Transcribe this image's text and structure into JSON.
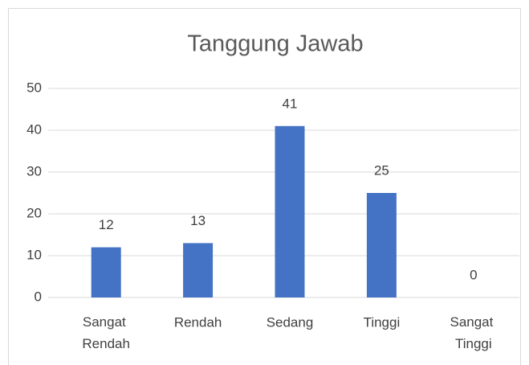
{
  "chart_data": {
    "type": "bar",
    "title": "Tanggung Jawab",
    "categories": [
      "Sangat Rendah",
      "Rendah",
      "Sedang",
      "Tinggi",
      "Sangat Tinggi"
    ],
    "values": [
      12,
      13,
      41,
      25,
      0
    ],
    "color": "#4472c4",
    "ylim": [
      0,
      50
    ],
    "yticks": [
      0,
      10,
      20,
      30,
      40,
      50
    ],
    "grid": true
  }
}
